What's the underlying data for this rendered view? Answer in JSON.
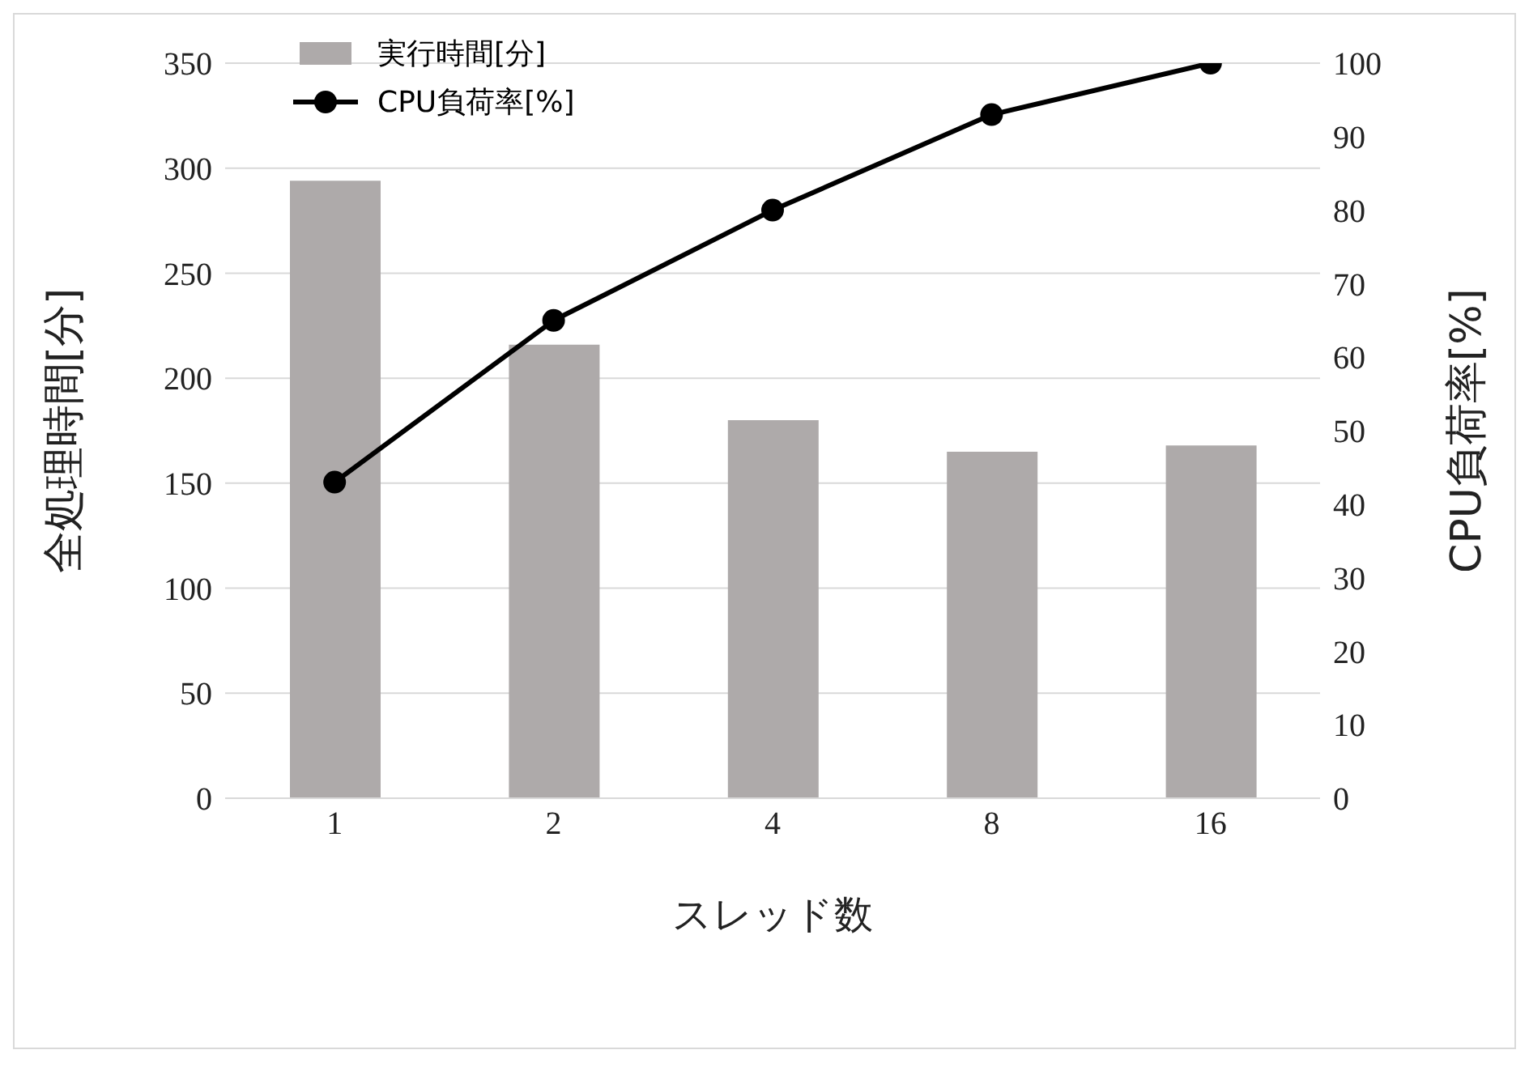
{
  "chart_data": {
    "type": "bar",
    "xlabel": "スレッド数",
    "ylabel": "全処理時間[分]",
    "y2label": "CPU負荷率[%]",
    "categories": [
      "1",
      "2",
      "4",
      "8",
      "16"
    ],
    "series": [
      {
        "name": "実行時間[分]",
        "color": "#aeaaaa",
        "values": [
          294,
          216,
          180,
          165,
          168
        ]
      },
      {
        "name": "CPU負荷率[%]",
        "type": "line",
        "axis": "y2",
        "color": "#000000",
        "values": [
          43,
          65,
          80,
          93,
          100
        ],
        "marker": "circle",
        "line_style": "solid"
      }
    ],
    "ylim": [
      0,
      350
    ],
    "yticks": [
      0,
      50,
      100,
      150,
      200,
      250,
      300,
      350
    ],
    "y2lim": [
      0,
      100
    ],
    "y2ticks": [
      0,
      10,
      20,
      30,
      40,
      50,
      60,
      70,
      80,
      90,
      100
    ],
    "grid": "y",
    "legend": "top left"
  }
}
